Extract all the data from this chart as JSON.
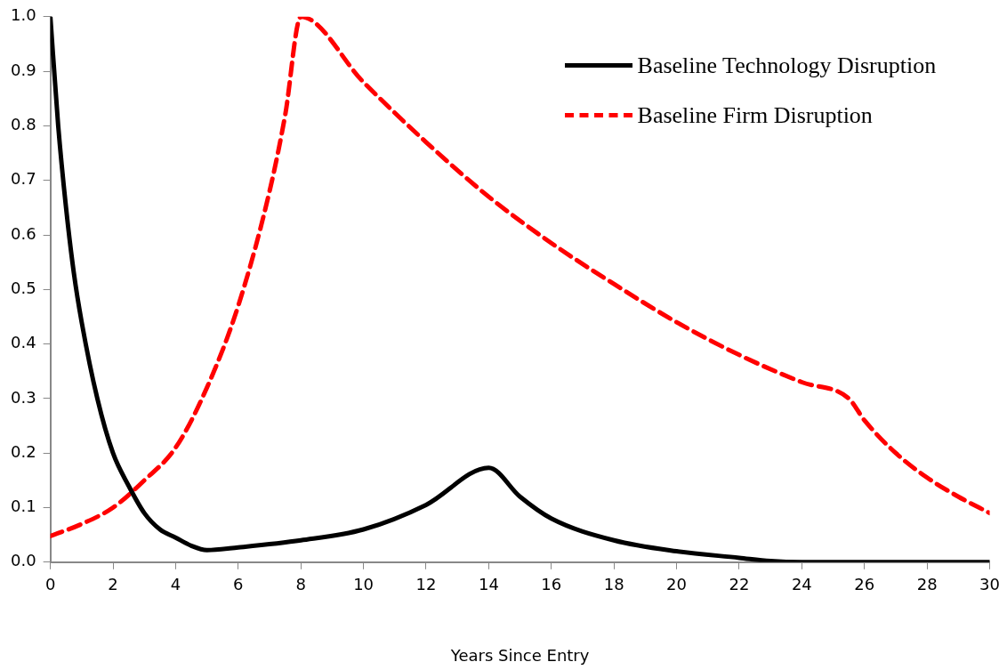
{
  "chart_data": {
    "type": "line",
    "xlabel": "Years Since Entry",
    "xlim": [
      0,
      30
    ],
    "xticks": [
      0,
      2,
      4,
      6,
      8,
      10,
      12,
      14,
      16,
      18,
      20,
      22,
      24,
      26,
      28,
      30
    ],
    "ylim": [
      0,
      1
    ],
    "yticks": [
      {
        "value": 0,
        "label": "0.0"
      },
      {
        "value": 0.1,
        "label": "0.1"
      },
      {
        "value": 0.2,
        "label": "0.2"
      },
      {
        "value": 0.3,
        "label": "0.3"
      },
      {
        "value": 0.4,
        "label": "0.4"
      },
      {
        "value": 0.5,
        "label": "0.5"
      },
      {
        "value": 0.6,
        "label": "0.6"
      },
      {
        "value": 0.7,
        "label": "0.7"
      },
      {
        "value": 0.8,
        "label": "0.8"
      },
      {
        "value": 0.9,
        "label": "0.9"
      },
      {
        "value": 1,
        "label": "1.0"
      }
    ],
    "grid": false,
    "legend": "top right",
    "marker": "none",
    "series": [
      {
        "name": "Baseline Technology Disruption",
        "color": "#000000",
        "line_style": "solid",
        "x": [
          0,
          0.25,
          0.5,
          0.75,
          1,
          1.5,
          2,
          2.5,
          3,
          3.5,
          4,
          4.5,
          5,
          6,
          8,
          10,
          12,
          14,
          15,
          16,
          18,
          20,
          22,
          23,
          24,
          26,
          28,
          30
        ],
        "values": [
          1.0,
          0.8,
          0.65,
          0.53,
          0.44,
          0.3,
          0.2,
          0.14,
          0.09,
          0.06,
          0.045,
          0.03,
          0.022,
          0.027,
          0.04,
          0.06,
          0.105,
          0.173,
          0.12,
          0.08,
          0.04,
          0.02,
          0.008,
          0.002,
          0,
          0,
          0,
          0
        ]
      },
      {
        "name": "Baseline Firm Disruption",
        "color": "#ff0000",
        "line_style": "dashed",
        "x": [
          0,
          1,
          2,
          3,
          4,
          5,
          6,
          7,
          7.5,
          8,
          10,
          12,
          14,
          16,
          18,
          20,
          22,
          24,
          25.5,
          26,
          27,
          28,
          29,
          30
        ],
        "values": [
          0.048,
          0.07,
          0.1,
          0.15,
          0.21,
          0.32,
          0.47,
          0.68,
          0.82,
          1.0,
          0.88,
          0.77,
          0.67,
          0.585,
          0.51,
          0.44,
          0.38,
          0.33,
          0.3,
          0.26,
          0.2,
          0.155,
          0.12,
          0.09
        ]
      }
    ]
  }
}
